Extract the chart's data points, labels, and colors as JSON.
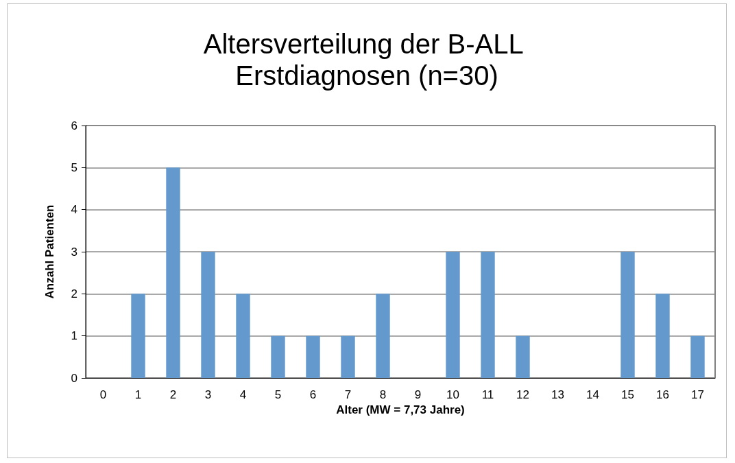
{
  "chart_data": {
    "type": "bar",
    "title": "Altersverteilung der B-ALL Erstdiagnosen (n=30)",
    "xlabel": "Alter (MW = 7,73 Jahre)",
    "ylabel": "Anzahl Patienten",
    "categories": [
      "0",
      "1",
      "2",
      "3",
      "4",
      "5",
      "6",
      "7",
      "8",
      "9",
      "10",
      "11",
      "12",
      "13",
      "14",
      "15",
      "16",
      "17"
    ],
    "values": [
      0,
      2,
      5,
      3,
      2,
      1,
      1,
      1,
      2,
      0,
      3,
      3,
      1,
      0,
      0,
      3,
      2,
      1
    ],
    "color": "#6399cc",
    "ylim": [
      0,
      6
    ],
    "yticks": [
      0,
      1,
      2,
      3,
      4,
      5,
      6
    ],
    "grid": "y"
  }
}
